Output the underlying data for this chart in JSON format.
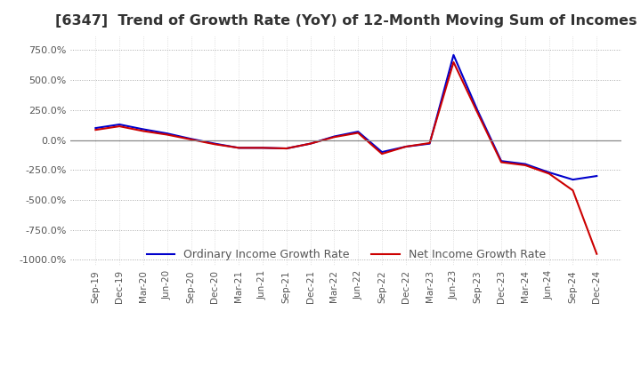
{
  "title": "[6347]  Trend of Growth Rate (YoY) of 12-Month Moving Sum of Incomes",
  "title_fontsize": 11.5,
  "legend_labels": [
    "Ordinary Income Growth Rate",
    "Net Income Growth Rate"
  ],
  "line_colors": [
    "#0000cc",
    "#cc0000"
  ],
  "ylim": [
    -1050,
    875
  ],
  "yticks": [
    750,
    500,
    250,
    0,
    -250,
    -500,
    -750,
    -1000
  ],
  "ytick_labels": [
    "750.0%",
    "500.0%",
    "250.0%",
    "0.0%",
    "-250.0%",
    "-500.0%",
    "-750.0%",
    "-1000.0%"
  ],
  "x_labels": [
    "Sep-19",
    "Dec-19",
    "Mar-20",
    "Jun-20",
    "Sep-20",
    "Dec-20",
    "Mar-21",
    "Jun-21",
    "Sep-21",
    "Dec-21",
    "Mar-22",
    "Jun-22",
    "Sep-22",
    "Dec-22",
    "Mar-23",
    "Jun-23",
    "Sep-23",
    "Dec-23",
    "Mar-24",
    "Jun-24",
    "Sep-24",
    "Dec-24"
  ],
  "ordinary_income": [
    100,
    130,
    90,
    55,
    10,
    -30,
    -65,
    -65,
    -70,
    -30,
    30,
    70,
    -100,
    -55,
    -30,
    710,
    250,
    -175,
    -200,
    -270,
    -330,
    -300
  ],
  "net_income": [
    85,
    115,
    75,
    45,
    5,
    -35,
    -65,
    -65,
    -70,
    -30,
    25,
    60,
    -115,
    -55,
    -25,
    650,
    230,
    -185,
    -210,
    -280,
    -420,
    -950
  ]
}
